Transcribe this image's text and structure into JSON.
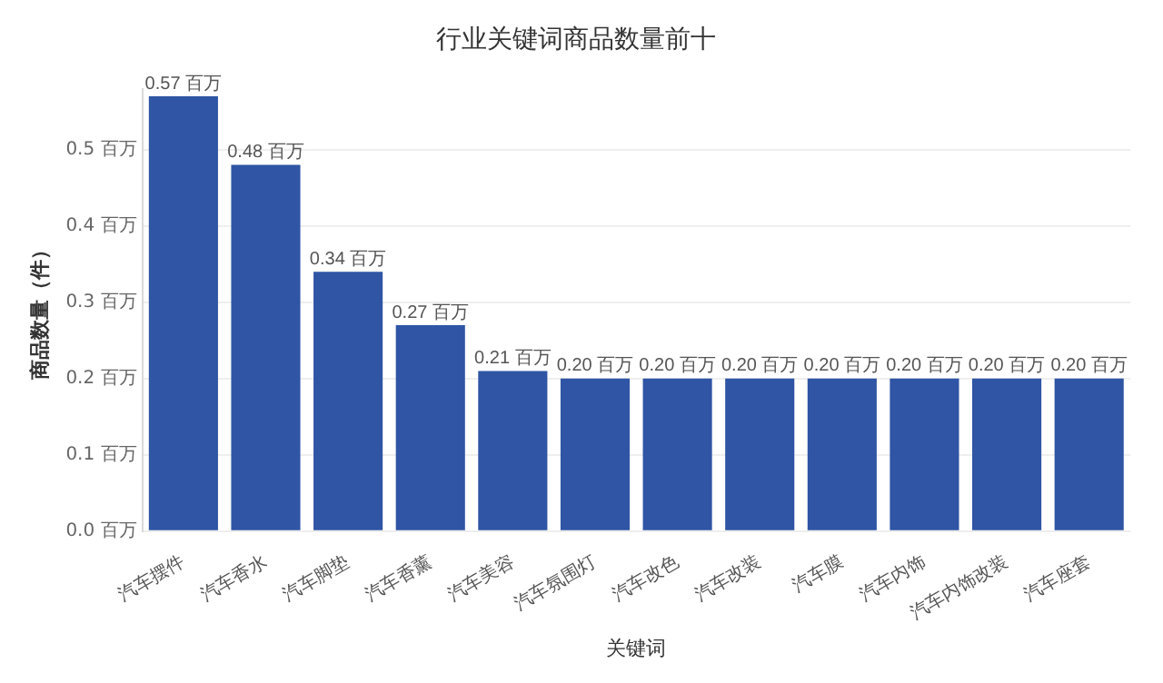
{
  "chart_data": {
    "type": "bar",
    "title": "行业关键词商品数量前十",
    "xlabel": "关键词",
    "ylabel": "商品数量（件）",
    "categories": [
      "汽车摆件",
      "汽车香水",
      "汽车脚垫",
      "汽车香薰",
      "汽车美容",
      "汽车氛围灯",
      "汽车改色",
      "汽车改装",
      "汽车膜",
      "汽车内饰",
      "汽车内饰改装",
      "汽车座套"
    ],
    "values": [
      0.57,
      0.48,
      0.34,
      0.27,
      0.21,
      0.2,
      0.2,
      0.2,
      0.2,
      0.2,
      0.2,
      0.2
    ],
    "value_labels": [
      "0.57 百万",
      "0.48 百万",
      "0.34 百万",
      "0.27 百万",
      "0.21 百万",
      "0.20 百万",
      "0.20 百万",
      "0.20 百万",
      "0.20 百万",
      "0.20 百万",
      "0.20 百万",
      "0.20 百万"
    ],
    "color": "#2f55a4",
    "ylim": [
      0,
      0.58
    ],
    "yticks": [
      {
        "value": 0,
        "label": "0.0 百万"
      },
      {
        "value": 0.1,
        "label": "0.1 百万"
      },
      {
        "value": 0.2,
        "label": "0.2 百万"
      },
      {
        "value": 0.3,
        "label": "0.3 百万"
      },
      {
        "value": 0.4,
        "label": "0.4 百万"
      },
      {
        "value": 0.5,
        "label": "0.5 百万"
      }
    ],
    "grid": "y",
    "legend": false
  }
}
